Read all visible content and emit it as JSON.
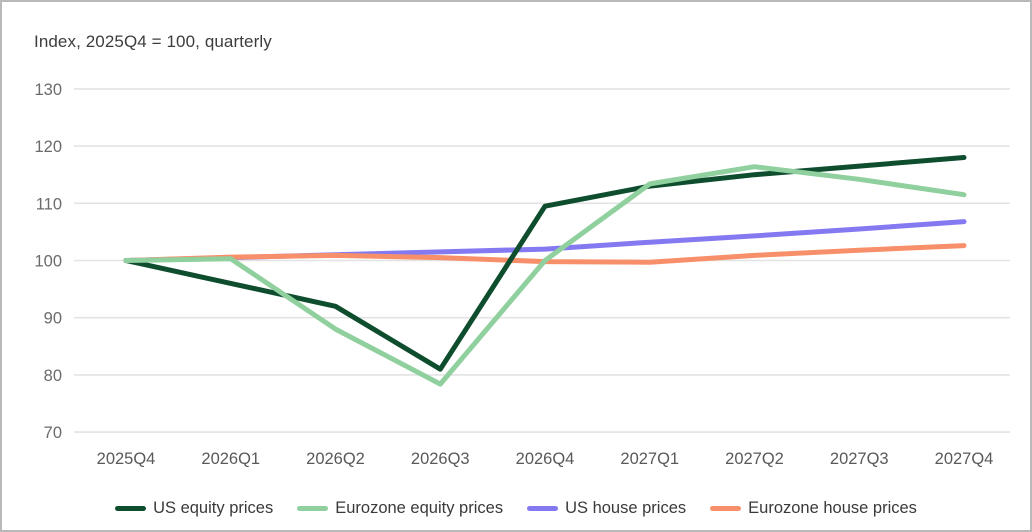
{
  "chart": {
    "title": "Index, 2025Q4 = 100, quarterly"
  },
  "chart_data": {
    "type": "line",
    "title": "Index, 2025Q4 = 100, quarterly",
    "xlabel": "",
    "ylabel": "",
    "categories": [
      "2025Q4",
      "2026Q1",
      "2026Q2",
      "2026Q3",
      "2026Q4",
      "2027Q1",
      "2027Q2",
      "2027Q3",
      "2027Q4"
    ],
    "series": [
      {
        "name": "US equity prices",
        "color": "#0f4d2f",
        "values": [
          100,
          96,
          92,
          81,
          109.5,
          113,
          115,
          116.5,
          118
        ]
      },
      {
        "name": "Eurozone equity prices",
        "color": "#90d09e",
        "values": [
          100,
          100.3,
          88,
          78.4,
          100,
          113.4,
          116.4,
          114.2,
          111.5
        ]
      },
      {
        "name": "US house prices",
        "color": "#8479f0",
        "values": [
          100,
          100.5,
          101,
          101.5,
          102,
          103.2,
          104.3,
          105.5,
          106.8
        ]
      },
      {
        "name": "Eurozone house prices",
        "color": "#f7906a",
        "values": [
          100,
          100.6,
          100.9,
          100.5,
          99.8,
          99.7,
          100.9,
          101.8,
          102.6
        ]
      }
    ],
    "ylim": [
      70,
      130
    ],
    "y_tick_step": 10,
    "y_tick_labels": [
      "70",
      "80",
      "90",
      "100",
      "110",
      "120",
      "130"
    ],
    "grid": "horizontal",
    "legend_position": "bottom",
    "draw_order": [
      2,
      3,
      0,
      1
    ]
  },
  "colors": {
    "background": "#ffffff",
    "border": "#b9b9b9",
    "grid": "#e3e3e3",
    "y_tick_text": "#6b6b6b",
    "x_tick_text": "#595959",
    "title_text": "#3d3d3d",
    "legend_text": "#3a3a3a"
  }
}
